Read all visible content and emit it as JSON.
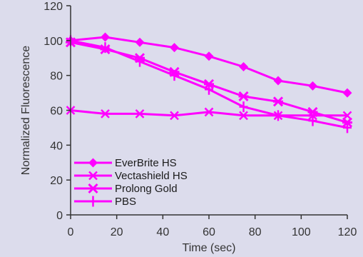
{
  "chart_data": {
    "type": "line",
    "title": "",
    "xlabel": "Time (sec)",
    "ylabel": "Normalized Fluorescence",
    "xlim": [
      0,
      120
    ],
    "ylim": [
      0,
      120
    ],
    "xticks": [
      0,
      20,
      40,
      60,
      80,
      100,
      120
    ],
    "yticks": [
      0,
      20,
      40,
      60,
      80,
      100,
      120
    ],
    "grid": false,
    "legend_position": "bottom-left",
    "series_color": "#ff00ff",
    "series": [
      {
        "name": "EverBrite HS",
        "marker": "diamond",
        "x": [
          0,
          15,
          30,
          45,
          60,
          75,
          90,
          105,
          120
        ],
        "y": [
          100,
          102,
          99,
          96,
          91,
          85,
          77,
          74,
          70
        ]
      },
      {
        "name": "Vectashield HS",
        "marker": "x",
        "x": [
          0,
          15,
          30,
          45,
          60,
          75,
          90,
          105,
          120
        ],
        "y": [
          60,
          58,
          58,
          57,
          59,
          57,
          57,
          57,
          57
        ]
      },
      {
        "name": "Prolong Gold",
        "marker": "star",
        "x": [
          0,
          15,
          30,
          45,
          60,
          75,
          90,
          105,
          120
        ],
        "y": [
          99,
          95,
          90,
          82,
          75,
          68,
          65,
          59,
          53
        ]
      },
      {
        "name": "PBS",
        "marker": "plus",
        "x": [
          0,
          15,
          30,
          45,
          60,
          75,
          90,
          105,
          120
        ],
        "y": [
          100,
          96,
          88,
          80,
          72,
          62,
          57,
          54,
          50
        ]
      }
    ]
  }
}
